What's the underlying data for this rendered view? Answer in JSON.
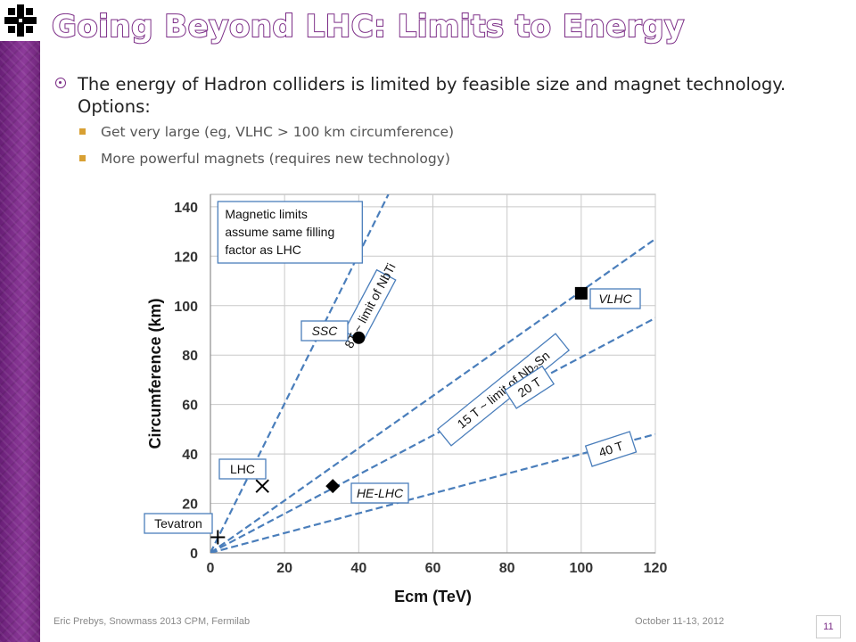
{
  "slide": {
    "title": "Going Beyond LHC: Limits to Energy",
    "bullet_main": "The energy of Hadron colliders is limited by feasible size and magnet technology. Options:",
    "sub_bullets": [
      "Get very large (eg, VLHC > 100 km circumference)",
      "More powerful magnets (requires new technology)"
    ],
    "footer_left": "Eric Prebys, Snowmass 2013 CPM, Fermilab",
    "footer_date": "October 11-13, 2012",
    "page_number": "11",
    "logo": "fermilab-logo-icon",
    "colors": {
      "accent": "#7b2c86",
      "sub_bullet": "#d8a033",
      "line": "#4a7ebb"
    }
  },
  "chart_data": {
    "type": "line",
    "xlabel": "Ecm (TeV)",
    "ylabel": "Circumference (km)",
    "xlim": [
      0,
      120
    ],
    "ylim": [
      0,
      145
    ],
    "x_ticks": [
      0,
      20,
      40,
      60,
      80,
      100,
      120
    ],
    "y_ticks": [
      0,
      20,
      40,
      60,
      80,
      100,
      120,
      140
    ],
    "grid": true,
    "note": "Magnetic limits\nassume same filling\nfactor as LHC",
    "series": [
      {
        "name": "8T ~ limit of NbTi",
        "x": [
          0,
          48
        ],
        "y": [
          0,
          145
        ],
        "style": "dashed"
      },
      {
        "name": "15 T ~ limit of Nb3Sn",
        "x": [
          0,
          120
        ],
        "y": [
          0,
          127
        ],
        "style": "dashed"
      },
      {
        "name": "20 T",
        "x": [
          0,
          120
        ],
        "y": [
          0,
          95
        ],
        "style": "dashed"
      },
      {
        "name": "40 T",
        "x": [
          0,
          120
        ],
        "y": [
          0,
          48
        ],
        "style": "dashed"
      }
    ],
    "points": [
      {
        "name": "Tevatron",
        "x": 2,
        "y": 6.3,
        "marker": "plus"
      },
      {
        "name": "LHC",
        "x": 14,
        "y": 27,
        "marker": "x"
      },
      {
        "name": "HE-LHC",
        "x": 33,
        "y": 27,
        "marker": "diamond"
      },
      {
        "name": "SSC",
        "x": 40,
        "y": 87,
        "marker": "circle"
      },
      {
        "name": "VLHC",
        "x": 100,
        "y": 105,
        "marker": "square"
      }
    ]
  }
}
